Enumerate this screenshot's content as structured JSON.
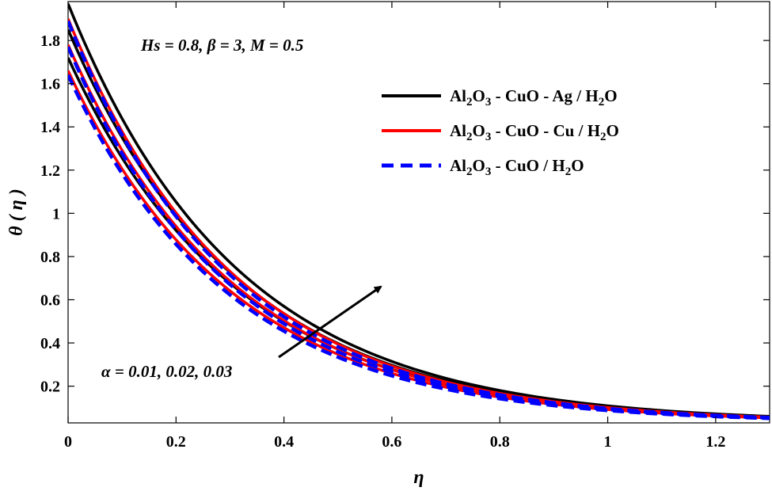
{
  "chart_data": {
    "type": "line",
    "title": "",
    "xlabel": "η",
    "ylabel": "θ ( η )",
    "xlim": [
      0,
      1.3
    ],
    "ylim": [
      0.03,
      1.98
    ],
    "xticks": [
      0,
      0.2,
      0.4,
      0.6,
      0.8,
      1,
      1.2
    ],
    "xtick_labels": [
      "0",
      "0.2",
      "0.4",
      "0.6",
      "0.8",
      "1",
      "1.2"
    ],
    "yticks": [
      0.2,
      0.4,
      0.6,
      0.8,
      1,
      1.2,
      1.4,
      1.6,
      1.8
    ],
    "ytick_labels": [
      "0.2",
      "0.4",
      "0.6",
      "0.8",
      "1",
      "1.2",
      "1.4",
      "1.6",
      "1.8"
    ],
    "grid": false,
    "legend_position": "top-right",
    "annotations": {
      "params": "Hs = 0.8, β = 3, M = 0.5",
      "alpha": "α = 0.01, 0.02, 0.03",
      "arrow": "increasing α"
    },
    "legend": [
      {
        "name": "Al2O3 - CuO - Ag / H2O",
        "color": "#000000",
        "style": "solid",
        "parts": [
          [
            "Al",
            ""
          ],
          [
            "2",
            "sub"
          ],
          [
            "O",
            ""
          ],
          [
            "3",
            "sub"
          ],
          [
            " - CuO - Ag / H",
            ""
          ],
          [
            "2",
            "sub"
          ],
          [
            "O",
            ""
          ]
        ]
      },
      {
        "name": "Al2O3 - CuO - Cu / H2O",
        "color": "#ff0000",
        "style": "solid",
        "parts": [
          [
            "Al",
            ""
          ],
          [
            "2",
            "sub"
          ],
          [
            "O",
            ""
          ],
          [
            "3",
            "sub"
          ],
          [
            " - CuO - Cu / H",
            ""
          ],
          [
            "2",
            "sub"
          ],
          [
            "O",
            ""
          ]
        ]
      },
      {
        "name": "Al2O3 - CuO / H2O",
        "color": "#0000ff",
        "style": "dashed",
        "parts": [
          [
            "Al",
            ""
          ],
          [
            "2",
            "sub"
          ],
          [
            "O",
            ""
          ],
          [
            "3",
            "sub"
          ],
          [
            " - CuO / H",
            ""
          ],
          [
            "2",
            "sub"
          ],
          [
            "O",
            ""
          ]
        ]
      }
    ],
    "series": [
      {
        "name": "Al2O3 - CuO - Ag / H2O",
        "alpha": 0.01,
        "color": "#000000",
        "style": "solid",
        "theta0": 1.72,
        "decay": 3.2
      },
      {
        "name": "Al2O3 - CuO - Ag / H2O",
        "alpha": 0.02,
        "color": "#000000",
        "style": "solid",
        "theta0": 1.85,
        "decay": 3.2
      },
      {
        "name": "Al2O3 - CuO - Ag / H2O",
        "alpha": 0.03,
        "color": "#000000",
        "style": "solid",
        "theta0": 1.97,
        "decay": 3.2
      },
      {
        "name": "Al2O3 - CuO - Cu / H2O",
        "alpha": 0.01,
        "color": "#ff0000",
        "style": "solid",
        "theta0": 1.66,
        "decay": 3.27
      },
      {
        "name": "Al2O3 - CuO - Cu / H2O",
        "alpha": 0.02,
        "color": "#ff0000",
        "style": "solid",
        "theta0": 1.78,
        "decay": 3.27
      },
      {
        "name": "Al2O3 - CuO - Cu / H2O",
        "alpha": 0.03,
        "color": "#ff0000",
        "style": "solid",
        "theta0": 1.9,
        "decay": 3.27
      },
      {
        "name": "Al2O3 - CuO / H2O",
        "alpha": 0.01,
        "color": "#0000ff",
        "style": "dashed",
        "theta0": 1.64,
        "decay": 3.33
      },
      {
        "name": "Al2O3 - CuO / H2O",
        "alpha": 0.02,
        "color": "#0000ff",
        "style": "dashed",
        "theta0": 1.77,
        "decay": 3.33
      },
      {
        "name": "Al2O3 - CuO / H2O",
        "alpha": 0.03,
        "color": "#0000ff",
        "style": "dashed",
        "theta0": 1.89,
        "decay": 3.33
      }
    ]
  }
}
